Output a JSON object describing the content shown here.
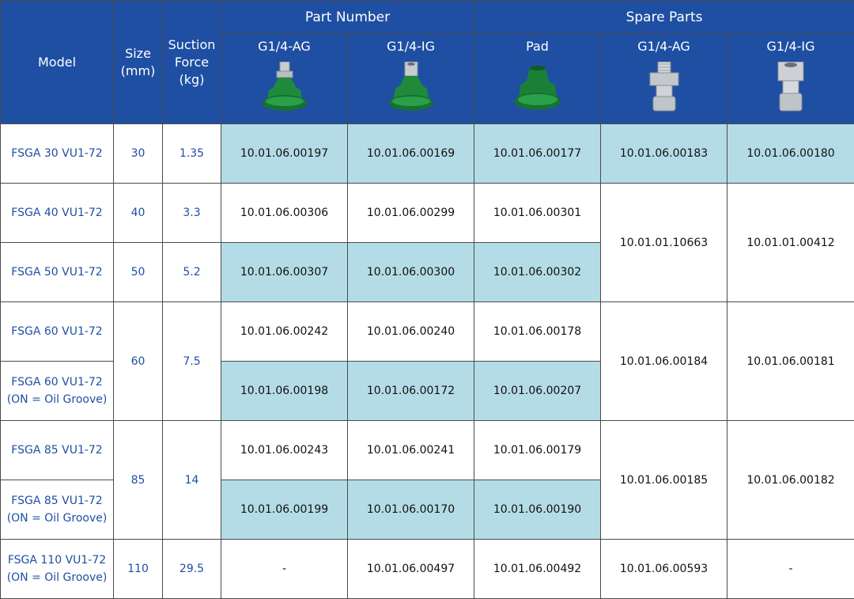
{
  "header": {
    "model": "Model",
    "size": [
      "Size",
      "(mm)"
    ],
    "force": [
      "Suction",
      "Force",
      "(kg)"
    ],
    "part_number": "Part Number",
    "spare_parts": "Spare Parts",
    "sub": [
      "G1/4-AG",
      "G1/4-IG",
      "Pad",
      "G1/4-AG",
      "G1/4-IG"
    ],
    "icons": [
      "vacuum-cup-ag-icon",
      "vacuum-cup-ig-icon",
      "pad-icon",
      "fitting-ag-icon",
      "fitting-ig-icon"
    ]
  },
  "colors": {
    "header_bg": "#1f4fa3",
    "highlight": "#b4dce6",
    "accent_text": "#1f4fa3"
  },
  "rows": [
    {
      "model": [
        "FSGA 30 VU1-72"
      ],
      "size": "30",
      "force": "1.35",
      "ag": "10.01.06.00197",
      "ig": "10.01.06.00169",
      "pad": "10.01.06.00177",
      "sp_ag": "10.01.06.00183",
      "sp_ig": "10.01.06.00180"
    },
    {
      "model": [
        "FSGA 40 VU1-72"
      ],
      "size": "40",
      "force": "3.3",
      "ag": "10.01.06.00306",
      "ig": "10.01.06.00299",
      "pad": "10.01.06.00301",
      "sp_ag": "10.01.01.10663",
      "sp_ig": "10.01.01.00412"
    },
    {
      "model": [
        "FSGA 50 VU1-72"
      ],
      "size": "50",
      "force": "5.2",
      "ag": "10.01.06.00307",
      "ig": "10.01.06.00300",
      "pad": "10.01.06.00302"
    },
    {
      "model": [
        "FSGA 60 VU1-72"
      ],
      "size": "60",
      "force": "7.5",
      "ag": "10.01.06.00242",
      "ig": "10.01.06.00240",
      "pad": "10.01.06.00178",
      "sp_ag": "10.01.06.00184",
      "sp_ig": "10.01.06.00181"
    },
    {
      "model": [
        "FSGA 60 VU1-72",
        "(ON = Oil Groove)"
      ],
      "ag": "10.01.06.00198",
      "ig": "10.01.06.00172",
      "pad": "10.01.06.00207"
    },
    {
      "model": [
        "FSGA 85 VU1-72"
      ],
      "size": "85",
      "force": "14",
      "ag": "10.01.06.00243",
      "ig": "10.01.06.00241",
      "pad": "10.01.06.00179",
      "sp_ag": "10.01.06.00185",
      "sp_ig": "10.01.06.00182"
    },
    {
      "model": [
        "FSGA 85 VU1-72",
        "(ON = Oil Groove)"
      ],
      "ag": "10.01.06.00199",
      "ig": "10.01.06.00170",
      "pad": "10.01.06.00190"
    },
    {
      "model": [
        "FSGA 110 VU1-72",
        "(ON = Oil Groove)"
      ],
      "size": "110",
      "force": "29.5",
      "ag": "-",
      "ig": "10.01.06.00497",
      "pad": "10.01.06.00492",
      "sp_ag": "10.01.06.00593",
      "sp_ig": "-"
    }
  ]
}
